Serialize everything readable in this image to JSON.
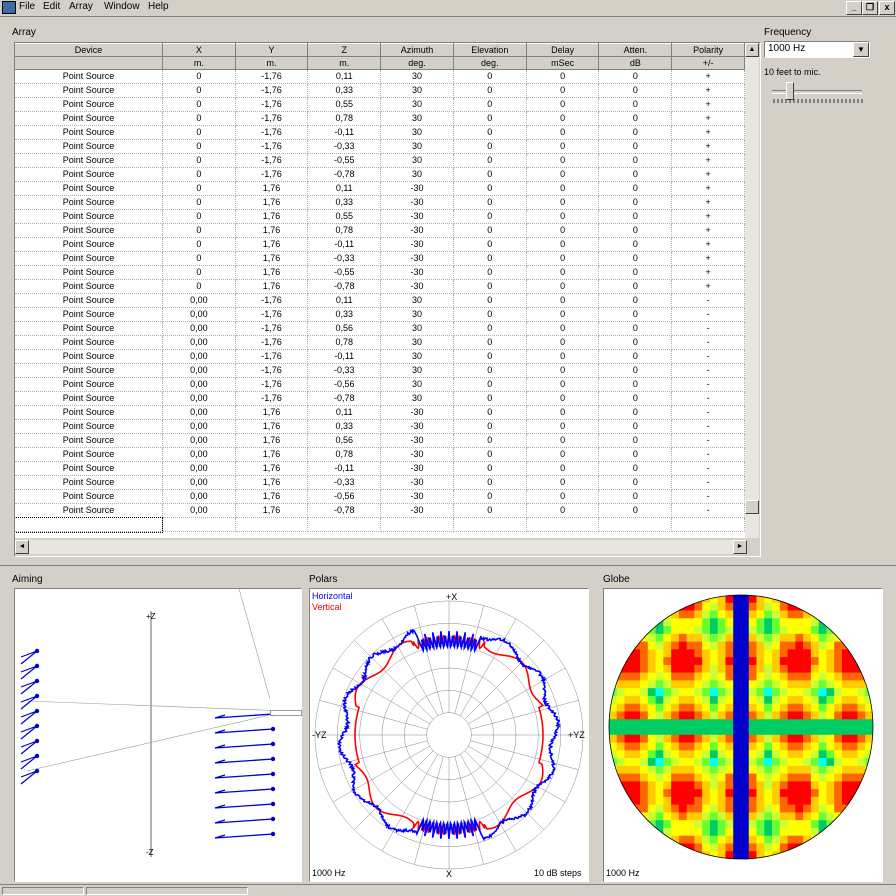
{
  "menu": {
    "items": [
      "File",
      "Edit",
      "Array",
      "Window",
      "Help"
    ]
  },
  "window_buttons": {
    "minimize": "_",
    "restore": "❐",
    "close": "x"
  },
  "array_section": {
    "title": "Array",
    "columns": [
      {
        "header": "Device",
        "unit": ""
      },
      {
        "header": "X",
        "unit": "m."
      },
      {
        "header": "Y",
        "unit": "m."
      },
      {
        "header": "Z",
        "unit": "m."
      },
      {
        "header": "Azimuth",
        "unit": "deg."
      },
      {
        "header": "Elevation",
        "unit": "deg."
      },
      {
        "header": "Delay",
        "unit": "mSec"
      },
      {
        "header": "Atten.",
        "unit": "dB"
      },
      {
        "header": "Polarity",
        "unit": "+/-"
      }
    ],
    "rows": [
      [
        "Point Source",
        "0",
        "-1,76",
        "0,11",
        "30",
        "0",
        "0",
        "0",
        "+"
      ],
      [
        "Point Source",
        "0",
        "-1,76",
        "0,33",
        "30",
        "0",
        "0",
        "0",
        "+"
      ],
      [
        "Point Source",
        "0",
        "-1,76",
        "0,55",
        "30",
        "0",
        "0",
        "0",
        "+"
      ],
      [
        "Point Source",
        "0",
        "-1,76",
        "0,78",
        "30",
        "0",
        "0",
        "0",
        "+"
      ],
      [
        "Point Source",
        "0",
        "-1,76",
        "-0,11",
        "30",
        "0",
        "0",
        "0",
        "+"
      ],
      [
        "Point Source",
        "0",
        "-1,76",
        "-0,33",
        "30",
        "0",
        "0",
        "0",
        "+"
      ],
      [
        "Point Source",
        "0",
        "-1,76",
        "-0,55",
        "30",
        "0",
        "0",
        "0",
        "+"
      ],
      [
        "Point Source",
        "0",
        "-1,76",
        "-0,78",
        "30",
        "0",
        "0",
        "0",
        "+"
      ],
      [
        "Point Source",
        "0",
        "1,76",
        "0,11",
        "-30",
        "0",
        "0",
        "0",
        "+"
      ],
      [
        "Point Source",
        "0",
        "1,76",
        "0,33",
        "-30",
        "0",
        "0",
        "0",
        "+"
      ],
      [
        "Point Source",
        "0",
        "1,76",
        "0,55",
        "-30",
        "0",
        "0",
        "0",
        "+"
      ],
      [
        "Point Source",
        "0",
        "1,76",
        "0,78",
        "-30",
        "0",
        "0",
        "0",
        "+"
      ],
      [
        "Point Source",
        "0",
        "1,76",
        "-0,11",
        "-30",
        "0",
        "0",
        "0",
        "+"
      ],
      [
        "Point Source",
        "0",
        "1,76",
        "-0,33",
        "-30",
        "0",
        "0",
        "0",
        "+"
      ],
      [
        "Point Source",
        "0",
        "1,76",
        "-0,55",
        "-30",
        "0",
        "0",
        "0",
        "+"
      ],
      [
        "Point Source",
        "0",
        "1,76",
        "-0,78",
        "-30",
        "0",
        "0",
        "0",
        "+"
      ],
      [
        "Point Source",
        "0,00",
        "-1,76",
        "0,11",
        "30",
        "0",
        "0",
        "0",
        "-"
      ],
      [
        "Point Source",
        "0,00",
        "-1,76",
        "0,33",
        "30",
        "0",
        "0",
        "0",
        "-"
      ],
      [
        "Point Source",
        "0,00",
        "-1,76",
        "0,56",
        "30",
        "0",
        "0",
        "0",
        "-"
      ],
      [
        "Point Source",
        "0,00",
        "-1,76",
        "0,78",
        "30",
        "0",
        "0",
        "0",
        "-"
      ],
      [
        "Point Source",
        "0,00",
        "-1,76",
        "-0,11",
        "30",
        "0",
        "0",
        "0",
        "-"
      ],
      [
        "Point Source",
        "0,00",
        "-1,76",
        "-0,33",
        "30",
        "0",
        "0",
        "0",
        "-"
      ],
      [
        "Point Source",
        "0,00",
        "-1,76",
        "-0,56",
        "30",
        "0",
        "0",
        "0",
        "-"
      ],
      [
        "Point Source",
        "0,00",
        "-1,76",
        "-0,78",
        "30",
        "0",
        "0",
        "0",
        "-"
      ],
      [
        "Point Source",
        "0,00",
        "1,76",
        "0,11",
        "-30",
        "0",
        "0",
        "0",
        "-"
      ],
      [
        "Point Source",
        "0,00",
        "1,76",
        "0,33",
        "-30",
        "0",
        "0",
        "0",
        "-"
      ],
      [
        "Point Source",
        "0,00",
        "1,76",
        "0,56",
        "-30",
        "0",
        "0",
        "0",
        "-"
      ],
      [
        "Point Source",
        "0,00",
        "1,76",
        "0,78",
        "-30",
        "0",
        "0",
        "0",
        "-"
      ],
      [
        "Point Source",
        "0,00",
        "1,76",
        "-0,11",
        "-30",
        "0",
        "0",
        "0",
        "-"
      ],
      [
        "Point Source",
        "0,00",
        "1,76",
        "-0,33",
        "-30",
        "0",
        "0",
        "0",
        "-"
      ],
      [
        "Point Source",
        "0,00",
        "1,76",
        "-0,56",
        "-30",
        "0",
        "0",
        "0",
        "-"
      ],
      [
        "Point Source",
        "0,00",
        "1,76",
        "-0,78",
        "-30",
        "0",
        "0",
        "0",
        "-"
      ]
    ]
  },
  "frequency": {
    "label": "Frequency",
    "selected": "1000 Hz",
    "distance_label": "10 feet to mic."
  },
  "aiming": {
    "title": "Aiming",
    "top_label": "+Z",
    "bottom_label": "-Z"
  },
  "polars": {
    "title": "Polars",
    "legend": [
      {
        "name": "Horizontal",
        "color": "#0000ff"
      },
      {
        "name": "Vertical",
        "color": "#ff0000"
      }
    ],
    "top_label": "+X",
    "bottom_label": "X",
    "left_label": "-YZ",
    "right_label": "+YZ",
    "freq_label": "1000 Hz",
    "steps_label": "10 dB steps"
  },
  "globe": {
    "title": "Globe",
    "freq_label": "1000 Hz"
  },
  "colors": {
    "horizontal": "#0000ff",
    "vertical": "#ff0000",
    "window_bg": "#d4d0c8"
  }
}
